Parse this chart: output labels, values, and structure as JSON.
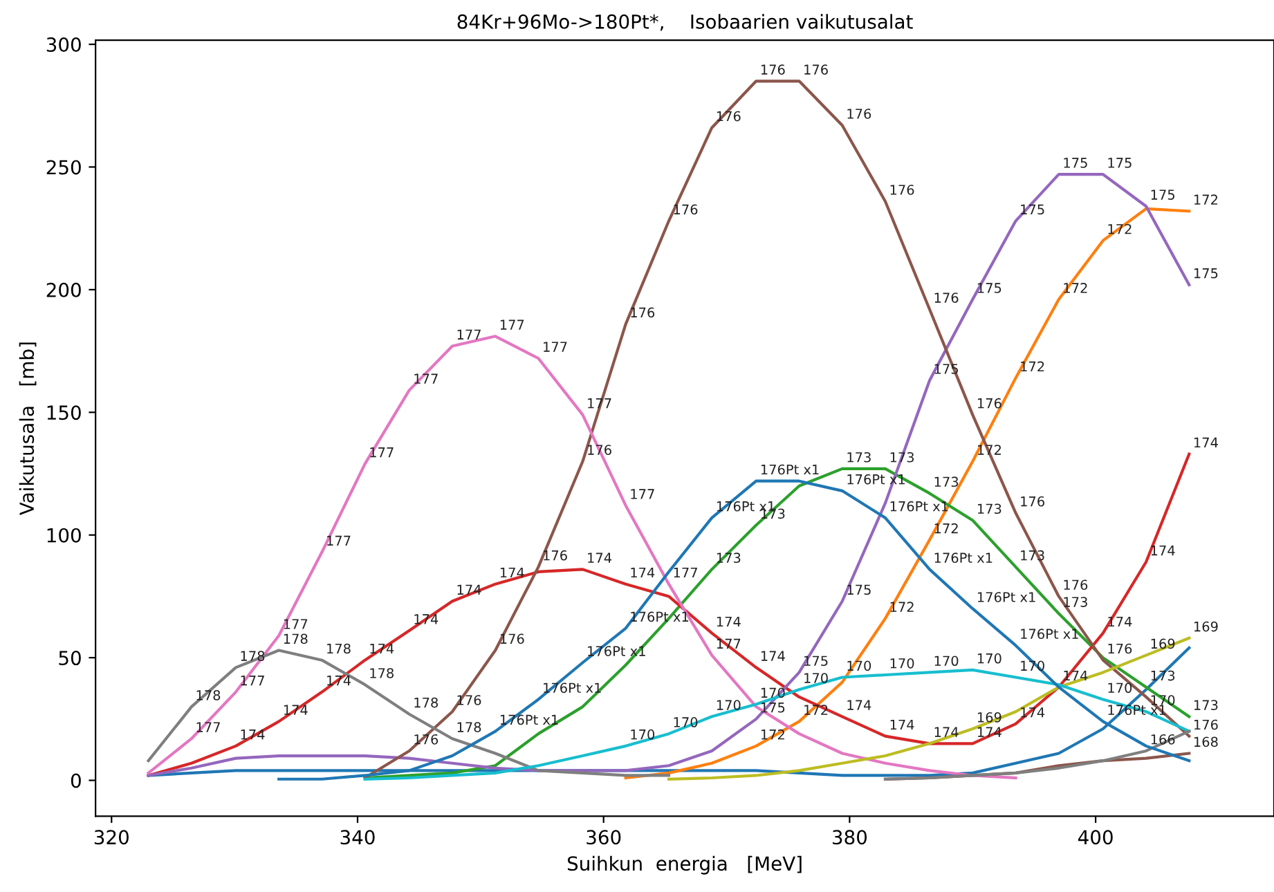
{
  "chart_data": {
    "type": "line",
    "title": "84Kr+96Mo->180Pt*,    Isobaarien vaikutusalat",
    "xlabel": "Suihkun  energia   [MeV]",
    "ylabel": "Vaikutusala   [mb]",
    "x": [
      323.0,
      326.5,
      330.1,
      333.6,
      337.1,
      340.6,
      344.2,
      347.7,
      351.2,
      354.7,
      358.3,
      361.8,
      365.3,
      368.8,
      372.4,
      375.9,
      379.4,
      382.9,
      386.5,
      390.0,
      393.5,
      397.0,
      400.6,
      404.1,
      407.6
    ],
    "xlim": [
      318.7,
      414.5
    ],
    "xticks": [
      320,
      340,
      360,
      380,
      400
    ],
    "ylim": [
      -14.6,
      301.7
    ],
    "yticks": [
      0,
      50,
      100,
      150,
      200,
      250,
      300
    ],
    "grid": false,
    "legend": false,
    "series": [
      {
        "color": "#1f77b4",
        "values": [
          2,
          3,
          4,
          4,
          4,
          4,
          4,
          4,
          4,
          4,
          4,
          4,
          4,
          4,
          4,
          3,
          2,
          2,
          2,
          3,
          7,
          11,
          21,
          37,
          54
        ]
      },
      {
        "color": "#ff7f0e",
        "values": [
          null,
          null,
          null,
          null,
          null,
          null,
          null,
          null,
          null,
          null,
          null,
          1,
          3,
          7,
          14,
          24,
          40,
          66,
          98,
          130,
          164,
          196,
          220,
          233,
          232
        ]
      },
      {
        "color": "#2ca02c",
        "values": [
          null,
          null,
          null,
          null,
          null,
          1,
          2,
          3,
          6,
          19,
          30,
          47,
          66,
          86,
          104,
          120,
          127,
          127,
          117,
          106,
          87,
          68,
          50,
          38,
          26
        ]
      },
      {
        "color": "#d62728",
        "values": [
          2,
          7,
          14,
          24,
          36,
          49,
          61,
          73,
          80,
          85,
          86,
          80,
          75,
          60,
          46,
          34,
          26,
          18,
          15,
          15,
          23,
          38,
          60,
          89,
          133
        ]
      },
      {
        "color": "#9467bd",
        "values": [
          2,
          5,
          9,
          10,
          10,
          10,
          9,
          7,
          5,
          4,
          4,
          4,
          6,
          12,
          25,
          44,
          73,
          113,
          163,
          196,
          228,
          247,
          247,
          234,
          202
        ]
      },
      {
        "color": "#8c564b",
        "values": [
          null,
          null,
          null,
          null,
          null,
          1,
          12,
          28,
          53,
          87,
          130,
          186,
          228,
          266,
          285,
          285,
          267,
          236,
          192,
          149,
          109,
          75,
          49,
          34,
          18
        ]
      },
      {
        "color": "#e377c2",
        "values": [
          3,
          17,
          36,
          59,
          93,
          129,
          159,
          177,
          181,
          172,
          149,
          112,
          80,
          51,
          30,
          19,
          11,
          7,
          4,
          2,
          1,
          null,
          null,
          null,
          null
        ]
      },
      {
        "color": "#7f7f7f",
        "values": [
          8,
          30,
          46,
          53,
          49,
          39,
          27,
          17,
          11,
          4,
          3,
          2,
          2,
          null,
          null,
          null,
          null,
          null,
          null,
          null,
          null,
          null,
          null,
          null,
          null
        ]
      },
      {
        "color": "#bcbd22",
        "values": [
          null,
          null,
          null,
          null,
          null,
          null,
          null,
          null,
          null,
          null,
          null,
          null,
          0.5,
          1,
          2,
          4,
          7,
          10,
          15,
          21,
          28,
          38,
          44,
          51,
          58
        ]
      },
      {
        "color": "#17becf",
        "values": [
          null,
          null,
          null,
          null,
          null,
          0.5,
          1,
          2,
          3,
          6,
          10,
          14,
          19,
          26,
          31,
          37,
          42,
          43,
          44,
          45,
          42,
          39,
          33,
          28,
          20
        ]
      },
      {
        "color": "#8c564b",
        "values": [
          null,
          null,
          null,
          null,
          null,
          null,
          null,
          null,
          null,
          null,
          null,
          null,
          null,
          null,
          null,
          null,
          null,
          0.5,
          1,
          2,
          3,
          6,
          8,
          9,
          11
        ]
      },
      {
        "color": "#7f7f7f",
        "values": [
          null,
          null,
          null,
          null,
          null,
          null,
          null,
          null,
          null,
          null,
          null,
          null,
          null,
          null,
          null,
          null,
          null,
          0.5,
          1,
          2,
          3,
          5,
          8,
          12,
          20
        ]
      },
      {
        "color": "#1f77b4",
        "values": [
          null,
          null,
          null,
          0.5,
          0.5,
          2,
          4,
          10,
          20,
          33,
          48,
          62,
          85,
          107,
          122,
          122,
          118,
          107,
          86,
          70,
          55,
          38,
          24,
          14,
          8
        ]
      }
    ],
    "annotations": [
      {
        "text": "177",
        "x": 326.5,
        "y": 17
      },
      {
        "text": "178",
        "x": 326.5,
        "y": 30
      },
      {
        "text": "174",
        "x": 330.1,
        "y": 14
      },
      {
        "text": "177",
        "x": 330.1,
        "y": 36
      },
      {
        "text": "178",
        "x": 330.1,
        "y": 46
      },
      {
        "text": "174",
        "x": 333.6,
        "y": 24
      },
      {
        "text": "177",
        "x": 333.6,
        "y": 59
      },
      {
        "text": "178",
        "x": 333.6,
        "y": 53
      },
      {
        "text": "174",
        "x": 337.1,
        "y": 36
      },
      {
        "text": "177",
        "x": 337.1,
        "y": 93
      },
      {
        "text": "178",
        "x": 337.1,
        "y": 49
      },
      {
        "text": "174",
        "x": 340.6,
        "y": 49
      },
      {
        "text": "177",
        "x": 340.6,
        "y": 129
      },
      {
        "text": "178",
        "x": 340.6,
        "y": 39
      },
      {
        "text": "174",
        "x": 344.2,
        "y": 61
      },
      {
        "text": "176",
        "x": 344.2,
        "y": 12
      },
      {
        "text": "177",
        "x": 344.2,
        "y": 159
      },
      {
        "text": "178",
        "x": 344.2,
        "y": 27
      },
      {
        "text": "174",
        "x": 347.7,
        "y": 73
      },
      {
        "text": "176",
        "x": 347.7,
        "y": 28
      },
      {
        "text": "177",
        "x": 347.7,
        "y": 177
      },
      {
        "text": "178",
        "x": 347.7,
        "y": 17
      },
      {
        "text": "174",
        "x": 351.2,
        "y": 80
      },
      {
        "text": "176",
        "x": 351.2,
        "y": 53
      },
      {
        "text": "177",
        "x": 351.2,
        "y": 181
      },
      {
        "text": "176Pt x1",
        "x": 351.2,
        "y": 20
      },
      {
        "text": "176",
        "x": 354.7,
        "y": 87
      },
      {
        "text": "177",
        "x": 354.7,
        "y": 172
      },
      {
        "text": "176Pt x1",
        "x": 354.7,
        "y": 33
      },
      {
        "text": "174",
        "x": 358.3,
        "y": 86
      },
      {
        "text": "176",
        "x": 358.3,
        "y": 130
      },
      {
        "text": "177",
        "x": 358.3,
        "y": 149
      },
      {
        "text": "176Pt x1",
        "x": 358.3,
        "y": 48
      },
      {
        "text": "174",
        "x": 361.8,
        "y": 80
      },
      {
        "text": "176",
        "x": 361.8,
        "y": 186
      },
      {
        "text": "177",
        "x": 361.8,
        "y": 112
      },
      {
        "text": "170",
        "x": 361.8,
        "y": 14
      },
      {
        "text": "176Pt x1",
        "x": 361.8,
        "y": 62
      },
      {
        "text": "176",
        "x": 365.3,
        "y": 228
      },
      {
        "text": "177",
        "x": 365.3,
        "y": 80
      },
      {
        "text": "170",
        "x": 365.3,
        "y": 19
      },
      {
        "text": "173",
        "x": 368.8,
        "y": 86
      },
      {
        "text": "174",
        "x": 368.8,
        "y": 60
      },
      {
        "text": "176",
        "x": 368.8,
        "y": 266
      },
      {
        "text": "177",
        "x": 368.8,
        "y": 51
      },
      {
        "text": "170",
        "x": 368.8,
        "y": 26
      },
      {
        "text": "176Pt x1",
        "x": 368.8,
        "y": 107
      },
      {
        "text": "173",
        "x": 372.4,
        "y": 104
      },
      {
        "text": "174",
        "x": 372.4,
        "y": 46
      },
      {
        "text": "176",
        "x": 372.4,
        "y": 285
      },
      {
        "text": "175",
        "x": 372.4,
        "y": 25
      },
      {
        "text": "172",
        "x": 372.4,
        "y": 14
      },
      {
        "text": "170",
        "x": 372.4,
        "y": 31
      },
      {
        "text": "176Pt x1",
        "x": 372.4,
        "y": 122
      },
      {
        "text": "176",
        "x": 375.9,
        "y": 285
      },
      {
        "text": "175",
        "x": 375.9,
        "y": 44
      },
      {
        "text": "172",
        "x": 375.9,
        "y": 24
      },
      {
        "text": "170",
        "x": 375.9,
        "y": 37
      },
      {
        "text": "173",
        "x": 379.4,
        "y": 127
      },
      {
        "text": "174",
        "x": 379.4,
        "y": 26
      },
      {
        "text": "176",
        "x": 379.4,
        "y": 267
      },
      {
        "text": "175",
        "x": 379.4,
        "y": 73
      },
      {
        "text": "170",
        "x": 379.4,
        "y": 42
      },
      {
        "text": "176Pt x1",
        "x": 379.4,
        "y": 118
      },
      {
        "text": "173",
        "x": 382.9,
        "y": 127
      },
      {
        "text": "174",
        "x": 382.9,
        "y": 18
      },
      {
        "text": "176",
        "x": 382.9,
        "y": 236
      },
      {
        "text": "172",
        "x": 382.9,
        "y": 66
      },
      {
        "text": "170",
        "x": 382.9,
        "y": 43
      },
      {
        "text": "176Pt x1",
        "x": 382.9,
        "y": 107
      },
      {
        "text": "173",
        "x": 386.5,
        "y": 117
      },
      {
        "text": "174",
        "x": 386.5,
        "y": 15
      },
      {
        "text": "176",
        "x": 386.5,
        "y": 192
      },
      {
        "text": "175",
        "x": 386.5,
        "y": 163
      },
      {
        "text": "172",
        "x": 386.5,
        "y": 98
      },
      {
        "text": "170",
        "x": 386.5,
        "y": 44
      },
      {
        "text": "176Pt x1",
        "x": 386.5,
        "y": 86
      },
      {
        "text": "173",
        "x": 390.0,
        "y": 106
      },
      {
        "text": "174",
        "x": 390.0,
        "y": 15
      },
      {
        "text": "176",
        "x": 390.0,
        "y": 149
      },
      {
        "text": "175",
        "x": 390.0,
        "y": 196
      },
      {
        "text": "172",
        "x": 390.0,
        "y": 130
      },
      {
        "text": "170",
        "x": 390.0,
        "y": 45
      },
      {
        "text": "169",
        "x": 390.0,
        "y": 21
      },
      {
        "text": "176Pt x1",
        "x": 390.0,
        "y": 70
      },
      {
        "text": "173",
        "x": 393.5,
        "y": 87
      },
      {
        "text": "174",
        "x": 393.5,
        "y": 23
      },
      {
        "text": "176",
        "x": 393.5,
        "y": 109
      },
      {
        "text": "175",
        "x": 393.5,
        "y": 228
      },
      {
        "text": "172",
        "x": 393.5,
        "y": 164
      },
      {
        "text": "170",
        "x": 393.5,
        "y": 42
      },
      {
        "text": "176Pt x1",
        "x": 393.5,
        "y": 55
      },
      {
        "text": "173",
        "x": 397.0,
        "y": 68
      },
      {
        "text": "174",
        "x": 397.0,
        "y": 38
      },
      {
        "text": "176",
        "x": 397.0,
        "y": 75
      },
      {
        "text": "175",
        "x": 397.0,
        "y": 247
      },
      {
        "text": "172",
        "x": 397.0,
        "y": 196
      },
      {
        "text": "174",
        "x": 400.6,
        "y": 60
      },
      {
        "text": "176",
        "x": 400.6,
        "y": 49
      },
      {
        "text": "175",
        "x": 400.6,
        "y": 247
      },
      {
        "text": "172",
        "x": 400.6,
        "y": 220
      },
      {
        "text": "170",
        "x": 400.6,
        "y": 33
      },
      {
        "text": "176Pt x1",
        "x": 400.6,
        "y": 24
      },
      {
        "text": "173",
        "x": 404.1,
        "y": 38
      },
      {
        "text": "174",
        "x": 404.1,
        "y": 89
      },
      {
        "text": "175",
        "x": 404.1,
        "y": 234
      },
      {
        "text": "170",
        "x": 404.1,
        "y": 28
      },
      {
        "text": "169",
        "x": 404.1,
        "y": 51
      },
      {
        "text": "166",
        "x": 404.1,
        "y": 12
      },
      {
        "text": "173",
        "x": 407.6,
        "y": 26
      },
      {
        "text": "174",
        "x": 407.6,
        "y": 133
      },
      {
        "text": "176",
        "x": 407.6,
        "y": 18
      },
      {
        "text": "175",
        "x": 407.6,
        "y": 202
      },
      {
        "text": "172",
        "x": 407.6,
        "y": 232
      },
      {
        "text": "169",
        "x": 407.6,
        "y": 58
      },
      {
        "text": "168",
        "x": 407.6,
        "y": 11
      }
    ]
  }
}
